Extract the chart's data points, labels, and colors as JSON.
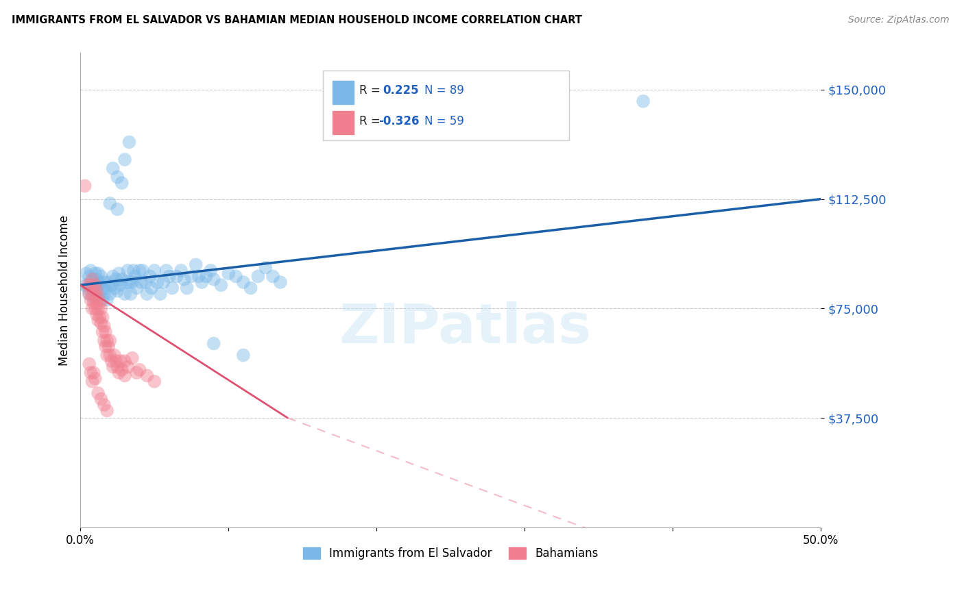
{
  "title": "IMMIGRANTS FROM EL SALVADOR VS BAHAMIAN MEDIAN HOUSEHOLD INCOME CORRELATION CHART",
  "source": "Source: ZipAtlas.com",
  "ylabel": "Median Household Income",
  "y_ticks": [
    37500,
    75000,
    112500,
    150000
  ],
  "y_tick_labels": [
    "$37,500",
    "$75,000",
    "$112,500",
    "$150,000"
  ],
  "x_range": [
    0.0,
    0.5
  ],
  "y_range": [
    0,
    162500
  ],
  "color_blue": "#7ab8e8",
  "color_blue_line": "#1a5fa8",
  "color_pink": "#f08090",
  "color_pink_line": "#e05070",
  "color_pink_dash": "#f0a0b0",
  "watermark": "ZIPatlas",
  "blue_scatter": [
    [
      0.003,
      83000
    ],
    [
      0.004,
      87000
    ],
    [
      0.005,
      82000
    ],
    [
      0.006,
      86000
    ],
    [
      0.006,
      80000
    ],
    [
      0.007,
      84000
    ],
    [
      0.007,
      88000
    ],
    [
      0.008,
      83000
    ],
    [
      0.008,
      79000
    ],
    [
      0.009,
      85000
    ],
    [
      0.009,
      81000
    ],
    [
      0.01,
      87000
    ],
    [
      0.01,
      83000
    ],
    [
      0.01,
      79000
    ],
    [
      0.011,
      85000
    ],
    [
      0.011,
      81000
    ],
    [
      0.012,
      83000
    ],
    [
      0.012,
      87000
    ],
    [
      0.013,
      84000
    ],
    [
      0.013,
      80000
    ],
    [
      0.014,
      86000
    ],
    [
      0.015,
      82000
    ],
    [
      0.015,
      78000
    ],
    [
      0.016,
      84000
    ],
    [
      0.016,
      80000
    ],
    [
      0.017,
      82000
    ],
    [
      0.018,
      78000
    ],
    [
      0.019,
      84000
    ],
    [
      0.02,
      80000
    ],
    [
      0.021,
      83000
    ],
    [
      0.022,
      86000
    ],
    [
      0.023,
      82000
    ],
    [
      0.024,
      85000
    ],
    [
      0.025,
      81000
    ],
    [
      0.026,
      87000
    ],
    [
      0.027,
      83000
    ],
    [
      0.028,
      85000
    ],
    [
      0.03,
      80000
    ],
    [
      0.031,
      84000
    ],
    [
      0.032,
      88000
    ],
    [
      0.033,
      84000
    ],
    [
      0.034,
      80000
    ],
    [
      0.035,
      84000
    ],
    [
      0.036,
      88000
    ],
    [
      0.037,
      86000
    ],
    [
      0.038,
      82000
    ],
    [
      0.04,
      88000
    ],
    [
      0.041,
      84000
    ],
    [
      0.042,
      88000
    ],
    [
      0.044,
      84000
    ],
    [
      0.045,
      80000
    ],
    [
      0.047,
      86000
    ],
    [
      0.048,
      82000
    ],
    [
      0.05,
      88000
    ],
    [
      0.052,
      84000
    ],
    [
      0.054,
      80000
    ],
    [
      0.056,
      84000
    ],
    [
      0.058,
      88000
    ],
    [
      0.06,
      86000
    ],
    [
      0.062,
      82000
    ],
    [
      0.065,
      86000
    ],
    [
      0.068,
      88000
    ],
    [
      0.07,
      85000
    ],
    [
      0.072,
      82000
    ],
    [
      0.075,
      86000
    ],
    [
      0.078,
      90000
    ],
    [
      0.08,
      86000
    ],
    [
      0.082,
      84000
    ],
    [
      0.085,
      86000
    ],
    [
      0.088,
      88000
    ],
    [
      0.09,
      85000
    ],
    [
      0.095,
      83000
    ],
    [
      0.1,
      87000
    ],
    [
      0.105,
      86000
    ],
    [
      0.11,
      84000
    ],
    [
      0.115,
      82000
    ],
    [
      0.12,
      86000
    ],
    [
      0.125,
      89000
    ],
    [
      0.13,
      86000
    ],
    [
      0.135,
      84000
    ],
    [
      0.022,
      123000
    ],
    [
      0.025,
      120000
    ],
    [
      0.028,
      118000
    ],
    [
      0.03,
      126000
    ],
    [
      0.033,
      132000
    ],
    [
      0.02,
      111000
    ],
    [
      0.025,
      109000
    ],
    [
      0.38,
      146000
    ],
    [
      0.09,
      63000
    ],
    [
      0.11,
      59000
    ]
  ],
  "pink_scatter": [
    [
      0.003,
      117000
    ],
    [
      0.005,
      83000
    ],
    [
      0.006,
      80000
    ],
    [
      0.007,
      78000
    ],
    [
      0.007,
      83000
    ],
    [
      0.008,
      85000
    ],
    [
      0.008,
      80000
    ],
    [
      0.008,
      75000
    ],
    [
      0.009,
      81000
    ],
    [
      0.009,
      77000
    ],
    [
      0.01,
      83000
    ],
    [
      0.01,
      79000
    ],
    [
      0.01,
      75000
    ],
    [
      0.011,
      81000
    ],
    [
      0.011,
      77000
    ],
    [
      0.011,
      73000
    ],
    [
      0.012,
      79000
    ],
    [
      0.012,
      75000
    ],
    [
      0.012,
      71000
    ],
    [
      0.013,
      77000
    ],
    [
      0.013,
      72000
    ],
    [
      0.014,
      75000
    ],
    [
      0.014,
      70000
    ],
    [
      0.015,
      72000
    ],
    [
      0.015,
      67000
    ],
    [
      0.016,
      69000
    ],
    [
      0.016,
      64000
    ],
    [
      0.017,
      67000
    ],
    [
      0.017,
      62000
    ],
    [
      0.018,
      64000
    ],
    [
      0.018,
      59000
    ],
    [
      0.019,
      62000
    ],
    [
      0.02,
      59000
    ],
    [
      0.02,
      64000
    ],
    [
      0.021,
      57000
    ],
    [
      0.022,
      55000
    ],
    [
      0.023,
      59000
    ],
    [
      0.024,
      57000
    ],
    [
      0.025,
      55000
    ],
    [
      0.026,
      53000
    ],
    [
      0.027,
      57000
    ],
    [
      0.028,
      54000
    ],
    [
      0.03,
      52000
    ],
    [
      0.03,
      57000
    ],
    [
      0.032,
      55000
    ],
    [
      0.035,
      58000
    ],
    [
      0.038,
      53000
    ],
    [
      0.04,
      54000
    ],
    [
      0.045,
      52000
    ],
    [
      0.05,
      50000
    ],
    [
      0.006,
      56000
    ],
    [
      0.007,
      53000
    ],
    [
      0.008,
      50000
    ],
    [
      0.009,
      53000
    ],
    [
      0.01,
      51000
    ],
    [
      0.012,
      46000
    ],
    [
      0.014,
      44000
    ],
    [
      0.016,
      42000
    ],
    [
      0.018,
      40000
    ]
  ],
  "blue_line": [
    [
      0.0,
      83000
    ],
    [
      0.5,
      112500
    ]
  ],
  "pink_line_solid": [
    [
      0.0,
      83000
    ],
    [
      0.14,
      37500
    ]
  ],
  "pink_line_dash": [
    [
      0.14,
      37500
    ],
    [
      0.5,
      -30000
    ]
  ]
}
